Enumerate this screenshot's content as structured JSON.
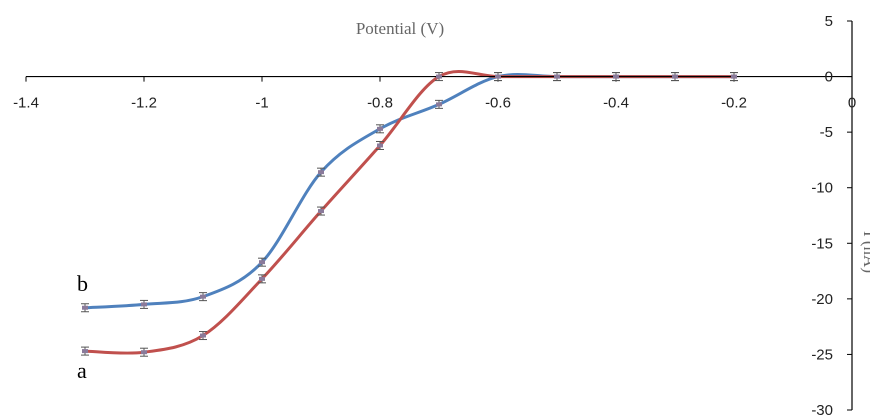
{
  "chart_data": {
    "type": "line",
    "xlabel": "Potential (V)",
    "ylabel": "I (nA)",
    "xlim": [
      -1.4,
      0
    ],
    "ylim": [
      -30,
      5
    ],
    "x_ticks": [
      -1.4,
      -1.2,
      -1,
      -0.8,
      -0.6,
      -0.4,
      -0.2,
      0
    ],
    "x_tick_labels": [
      "-1.4",
      "-1.2",
      "-1",
      "-0.8",
      "-0.6",
      "-0.4",
      "-0.2",
      "0"
    ],
    "y_ticks": [
      5,
      0,
      -5,
      -10,
      -15,
      -20,
      -25,
      -30
    ],
    "y_tick_labels": [
      "5",
      "0",
      "-5",
      "-10",
      "-15",
      "-20",
      "-25",
      "-30"
    ],
    "grid": false,
    "legend": "none",
    "series": [
      {
        "name": "b",
        "color": "#4f81bd",
        "x": [
          -1.3,
          -1.2,
          -1.1,
          -1.0,
          -0.9,
          -0.8,
          -0.7,
          -0.6,
          -0.5,
          -0.4,
          -0.3,
          -0.2
        ],
        "y": [
          -20.8,
          -20.5,
          -19.8,
          -16.7,
          -8.6,
          -4.7,
          -2.5,
          0,
          0,
          0,
          0,
          0
        ]
      },
      {
        "name": "a",
        "color": "#c0504d",
        "x": [
          -1.3,
          -1.2,
          -1.1,
          -1.0,
          -0.9,
          -0.8,
          -0.7,
          -0.6,
          -0.5,
          -0.4,
          -0.3,
          -0.2
        ],
        "y": [
          -24.7,
          -24.8,
          -23.3,
          -18.2,
          -12.1,
          -6.2,
          0,
          0,
          0,
          0,
          0,
          0
        ]
      }
    ]
  }
}
